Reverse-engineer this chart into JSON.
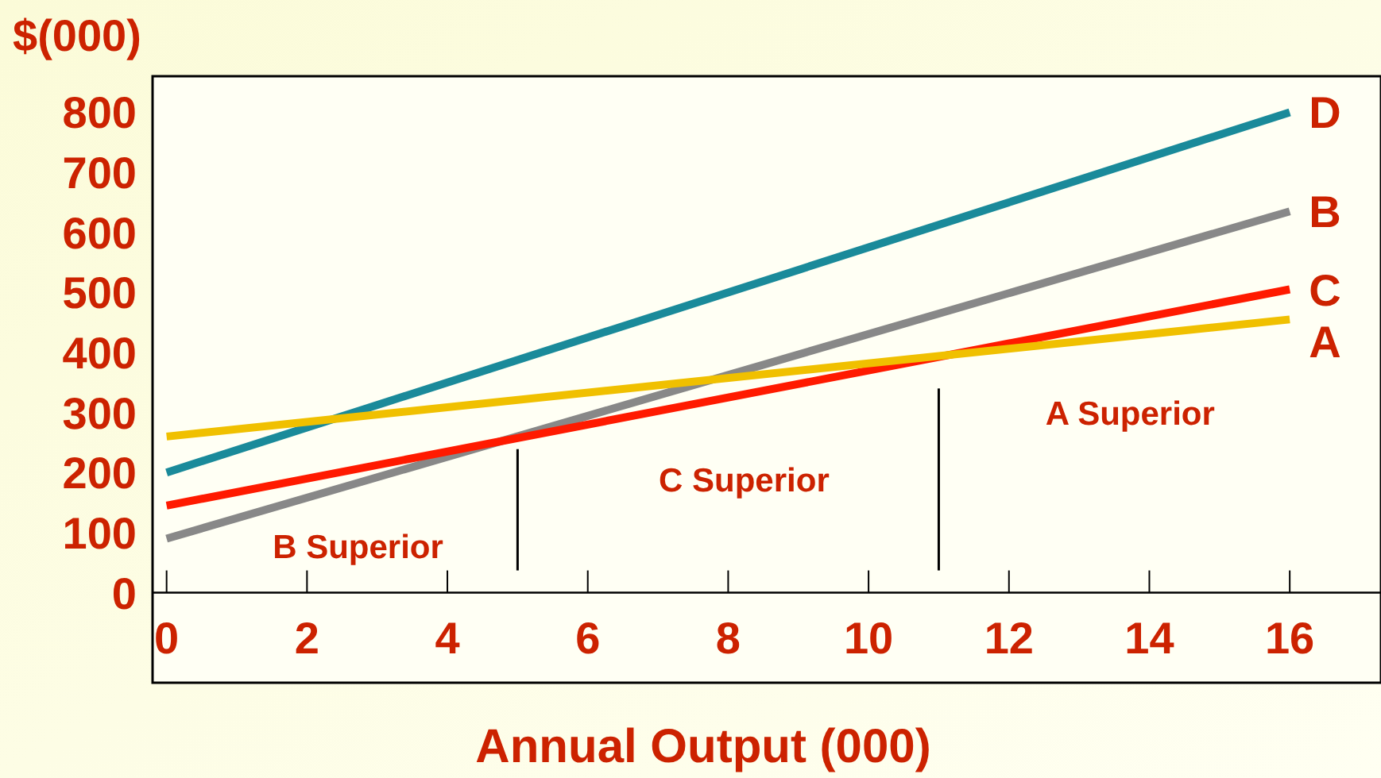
{
  "chart_data": {
    "type": "line",
    "ylabel": "$(000)",
    "xlabel": "Annual Output (000)",
    "x": [
      0,
      16
    ],
    "series": [
      {
        "name": "D",
        "color": "#1a8a9a",
        "values": [
          200,
          800
        ]
      },
      {
        "name": "B",
        "color": "#888888",
        "values": [
          90,
          635
        ]
      },
      {
        "name": "C",
        "color": "#ff1a00",
        "values": [
          145,
          505
        ]
      },
      {
        "name": "A",
        "color": "#f0c000",
        "values": [
          260,
          455
        ]
      }
    ],
    "xlim": [
      -0.2,
      17.3
    ],
    "ylim": [
      -150,
      860
    ],
    "xticks": [
      0,
      2,
      4,
      6,
      8,
      10,
      12,
      14,
      16
    ],
    "yticks": [
      0,
      100,
      200,
      300,
      400,
      500,
      600,
      700,
      800
    ],
    "ref_lines": [
      {
        "axis": "x",
        "value": 5,
        "color": "#000000"
      },
      {
        "axis": "x",
        "value": 11,
        "color": "#000000"
      }
    ],
    "annotations": [
      "B Superior",
      "C Superior",
      "A Superior"
    ],
    "grid": false,
    "legend": false
  }
}
